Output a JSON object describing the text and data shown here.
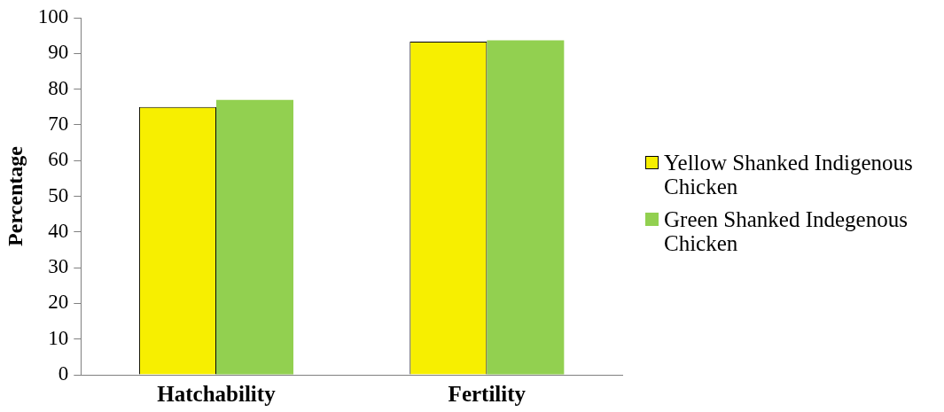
{
  "chart_data": {
    "type": "bar",
    "ylabel": "Percentage",
    "categories": [
      "Hatchability",
      "Fertility"
    ],
    "series": [
      {
        "name": "Yellow Shanked Indigenous Chicken",
        "color": "#f7ef00",
        "values": [
          75,
          93.3
        ]
      },
      {
        "name": "Green Shanked Indegenous Chicken",
        "color": "#92d050",
        "values": [
          77,
          93.7
        ]
      }
    ],
    "ylim": [
      0,
      100
    ],
    "yticks": [
      0,
      10,
      20,
      30,
      40,
      50,
      60,
      70,
      80,
      90,
      100
    ],
    "grid": false,
    "legend": "right"
  }
}
